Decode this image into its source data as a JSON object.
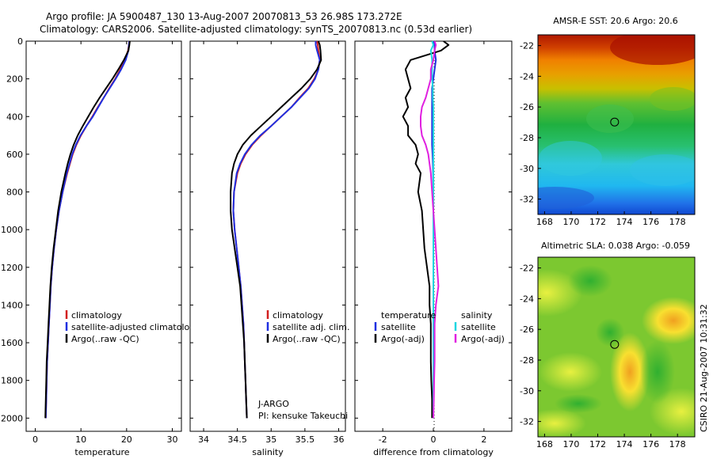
{
  "title_line1": "Argo profile: JA 5900487_130 13-Aug-2007 20070813_53 26.98S 173.272E",
  "title_line2": "Climatology: CARS2006. Satellite-adjusted climatology: synTS_20070813.nc (0.53d earlier)",
  "timestamp": "CSIRO 21-Aug-2007 10:31:32",
  "colors": {
    "clim": "#d21f1f",
    "sat": "#1f2fe0",
    "argo": "#000000",
    "sat_s": "#1fd6e0",
    "argo_s": "#e020e0"
  },
  "chart_data": [
    {
      "type": "line",
      "xlabel": "temperature",
      "xlim": [
        -2,
        32
      ],
      "ylim": [
        2070,
        0
      ],
      "xticks": [
        0,
        10,
        20,
        30
      ],
      "yticks": [
        0,
        200,
        400,
        600,
        800,
        1000,
        1200,
        1400,
        1600,
        1800,
        2000
      ],
      "legend": [
        "climatology",
        "satellite-adjusted climatology",
        "Argo(..raw -QC)"
      ],
      "depth": [
        0,
        20,
        50,
        100,
        150,
        200,
        250,
        300,
        350,
        400,
        450,
        500,
        550,
        600,
        650,
        700,
        800,
        900,
        1000,
        1100,
        1200,
        1300,
        1400,
        1500,
        1600,
        1700,
        1800,
        1900,
        2000
      ],
      "series": [
        {
          "values": [
            20.6,
            20.5,
            20.3,
            19.6,
            18.6,
            17.5,
            16.2,
            15.0,
            13.7,
            12.5,
            11.2,
            10.0,
            9.0,
            8.2,
            7.6,
            7.0,
            6.0,
            5.2,
            4.6,
            4.1,
            3.7,
            3.4,
            3.2,
            3.0,
            2.8,
            2.6,
            2.5,
            2.4,
            2.3
          ]
        },
        {
          "values": [
            20.6,
            20.5,
            20.4,
            19.8,
            18.8,
            17.6,
            16.3,
            15.0,
            13.8,
            12.6,
            11.2,
            9.9,
            8.9,
            8.1,
            7.5,
            6.9,
            6.0,
            5.2,
            4.6,
            4.1,
            3.7,
            3.4,
            3.2,
            3.0,
            2.8,
            2.6,
            2.5,
            2.4,
            2.3
          ]
        },
        {
          "values": [
            20.7,
            20.6,
            20.4,
            19.4,
            18.2,
            16.9,
            15.5,
            14.1,
            12.8,
            11.6,
            10.4,
            9.3,
            8.4,
            7.7,
            7.1,
            6.6,
            5.7,
            5.0,
            4.5,
            4.0,
            3.6,
            3.3,
            3.1,
            2.9,
            2.7,
            2.5,
            2.4,
            2.3,
            2.2
          ]
        }
      ]
    },
    {
      "type": "line",
      "xlabel": "salinity",
      "xlim": [
        33.8,
        36.1
      ],
      "ylim": [
        2070,
        0
      ],
      "xticks": [
        34,
        34.5,
        35,
        35.5,
        36
      ],
      "legend": [
        "climatology",
        "satellite adj. clim.",
        "Argo(..raw -QC)"
      ],
      "annotation": [
        "J-ARGO",
        "PI: kensuke Takeuchi"
      ],
      "depth": [
        0,
        20,
        50,
        100,
        150,
        200,
        250,
        300,
        350,
        400,
        450,
        500,
        550,
        600,
        650,
        700,
        800,
        900,
        1000,
        1100,
        1200,
        1300,
        1400,
        1500,
        1600,
        1700,
        1800,
        1900,
        2000
      ],
      "series": [
        {
          "values": [
            35.68,
            35.69,
            35.7,
            35.72,
            35.7,
            35.64,
            35.55,
            35.42,
            35.3,
            35.15,
            35.0,
            34.85,
            34.72,
            34.62,
            34.55,
            34.5,
            34.45,
            34.44,
            34.46,
            34.49,
            34.52,
            34.55,
            34.57,
            34.59,
            34.6,
            34.61,
            34.62,
            34.63,
            34.64
          ]
        },
        {
          "values": [
            35.66,
            35.66,
            35.68,
            35.72,
            35.7,
            35.65,
            35.56,
            35.43,
            35.3,
            35.15,
            35.0,
            34.84,
            34.71,
            34.61,
            34.54,
            34.49,
            34.45,
            34.44,
            34.46,
            34.49,
            34.52,
            34.55,
            34.57,
            34.59,
            34.6,
            34.61,
            34.62,
            34.63,
            34.64
          ]
        },
        {
          "values": [
            35.7,
            35.72,
            35.73,
            35.74,
            35.68,
            35.58,
            35.45,
            35.3,
            35.15,
            35.0,
            34.85,
            34.7,
            34.58,
            34.5,
            34.45,
            34.42,
            34.4,
            34.4,
            34.42,
            34.46,
            34.5,
            34.54,
            34.56,
            34.58,
            34.6,
            34.61,
            34.62,
            34.63,
            34.64
          ]
        }
      ]
    },
    {
      "type": "line",
      "xlabel": "difference from climatology",
      "xlim": [
        -3.1,
        3.1
      ],
      "ylim": [
        2070,
        0
      ],
      "xticks": [
        -2,
        0,
        2
      ],
      "legend_left": [
        "temperature",
        "satellite",
        "Argo(-adj)"
      ],
      "legend_right": [
        "salinity",
        "satellite",
        "Argo(-adj)"
      ],
      "depth": [
        0,
        20,
        50,
        100,
        150,
        200,
        250,
        300,
        350,
        400,
        450,
        500,
        550,
        600,
        650,
        700,
        800,
        900,
        1000,
        1100,
        1200,
        1300,
        1400,
        1500,
        1600,
        1700,
        1800,
        1900,
        2000
      ],
      "series": [
        {
          "name": "temperature satellite",
          "values": [
            0.0,
            0.05,
            0.05,
            0.1,
            0.05,
            0.0,
            -0.05,
            -0.05,
            -0.05,
            -0.05,
            -0.05,
            -0.05,
            -0.05,
            -0.03,
            -0.02,
            -0.01,
            0.0,
            0.0,
            0.0,
            0.0,
            0.0,
            0.0,
            0.0,
            0.0,
            0.0,
            0.0,
            0.0,
            0.0,
            0.0
          ]
        },
        {
          "name": "temperature Argo(-adj)",
          "values": [
            0.4,
            0.6,
            0.3,
            -0.9,
            -1.1,
            -1.0,
            -0.9,
            -1.1,
            -1.0,
            -1.2,
            -1.0,
            -1.0,
            -0.7,
            -0.6,
            -0.7,
            -0.5,
            -0.6,
            -0.45,
            -0.4,
            -0.35,
            -0.25,
            -0.15,
            -0.15,
            -0.1,
            -0.1,
            -0.1,
            -0.08,
            -0.05,
            -0.05
          ]
        },
        {
          "name": "salinity satellite",
          "values": [
            -0.05,
            0.0,
            -0.1,
            -0.05,
            -0.05,
            -0.05,
            -0.02,
            -0.02,
            0.0,
            0.0,
            0.0,
            0.0,
            0.0,
            0.0,
            0.0,
            0.0,
            0.0,
            0.0,
            0.0,
            0.0,
            0.0,
            0.0,
            0.0,
            0.0,
            0.0,
            0.0,
            0.0,
            0.0,
            0.0
          ]
        },
        {
          "name": "salinity Argo(-adj)",
          "values": [
            0.05,
            0.1,
            0.05,
            0.0,
            -0.1,
            -0.1,
            -0.2,
            -0.3,
            -0.45,
            -0.5,
            -0.5,
            -0.45,
            -0.3,
            -0.2,
            -0.15,
            -0.1,
            -0.05,
            0.0,
            0.05,
            0.1,
            0.15,
            0.2,
            0.1,
            0.05,
            0.05,
            0.05,
            0.03,
            0.02,
            0.0
          ]
        }
      ]
    },
    {
      "type": "heatmap",
      "title": "AMSR-E SST: 20.6  Argo: 20.6",
      "xlim": [
        167.5,
        179.3
      ],
      "ylim": [
        -33,
        -21.3
      ],
      "xticks": [
        168,
        170,
        172,
        174,
        176,
        178
      ],
      "yticks": [
        -22,
        -24,
        -26,
        -28,
        -30,
        -32
      ],
      "marker": {
        "lon": 173.27,
        "lat": -26.98
      }
    },
    {
      "type": "heatmap",
      "title": "Altimetric SLA: 0.038  Argo: -0.059",
      "xlim": [
        167.5,
        179.3
      ],
      "ylim": [
        -33,
        -21.3
      ],
      "xticks": [
        168,
        170,
        172,
        174,
        176,
        178
      ],
      "yticks": [
        -22,
        -24,
        -26,
        -28,
        -30,
        -32
      ],
      "marker": {
        "lon": 173.27,
        "lat": -26.98
      }
    }
  ]
}
